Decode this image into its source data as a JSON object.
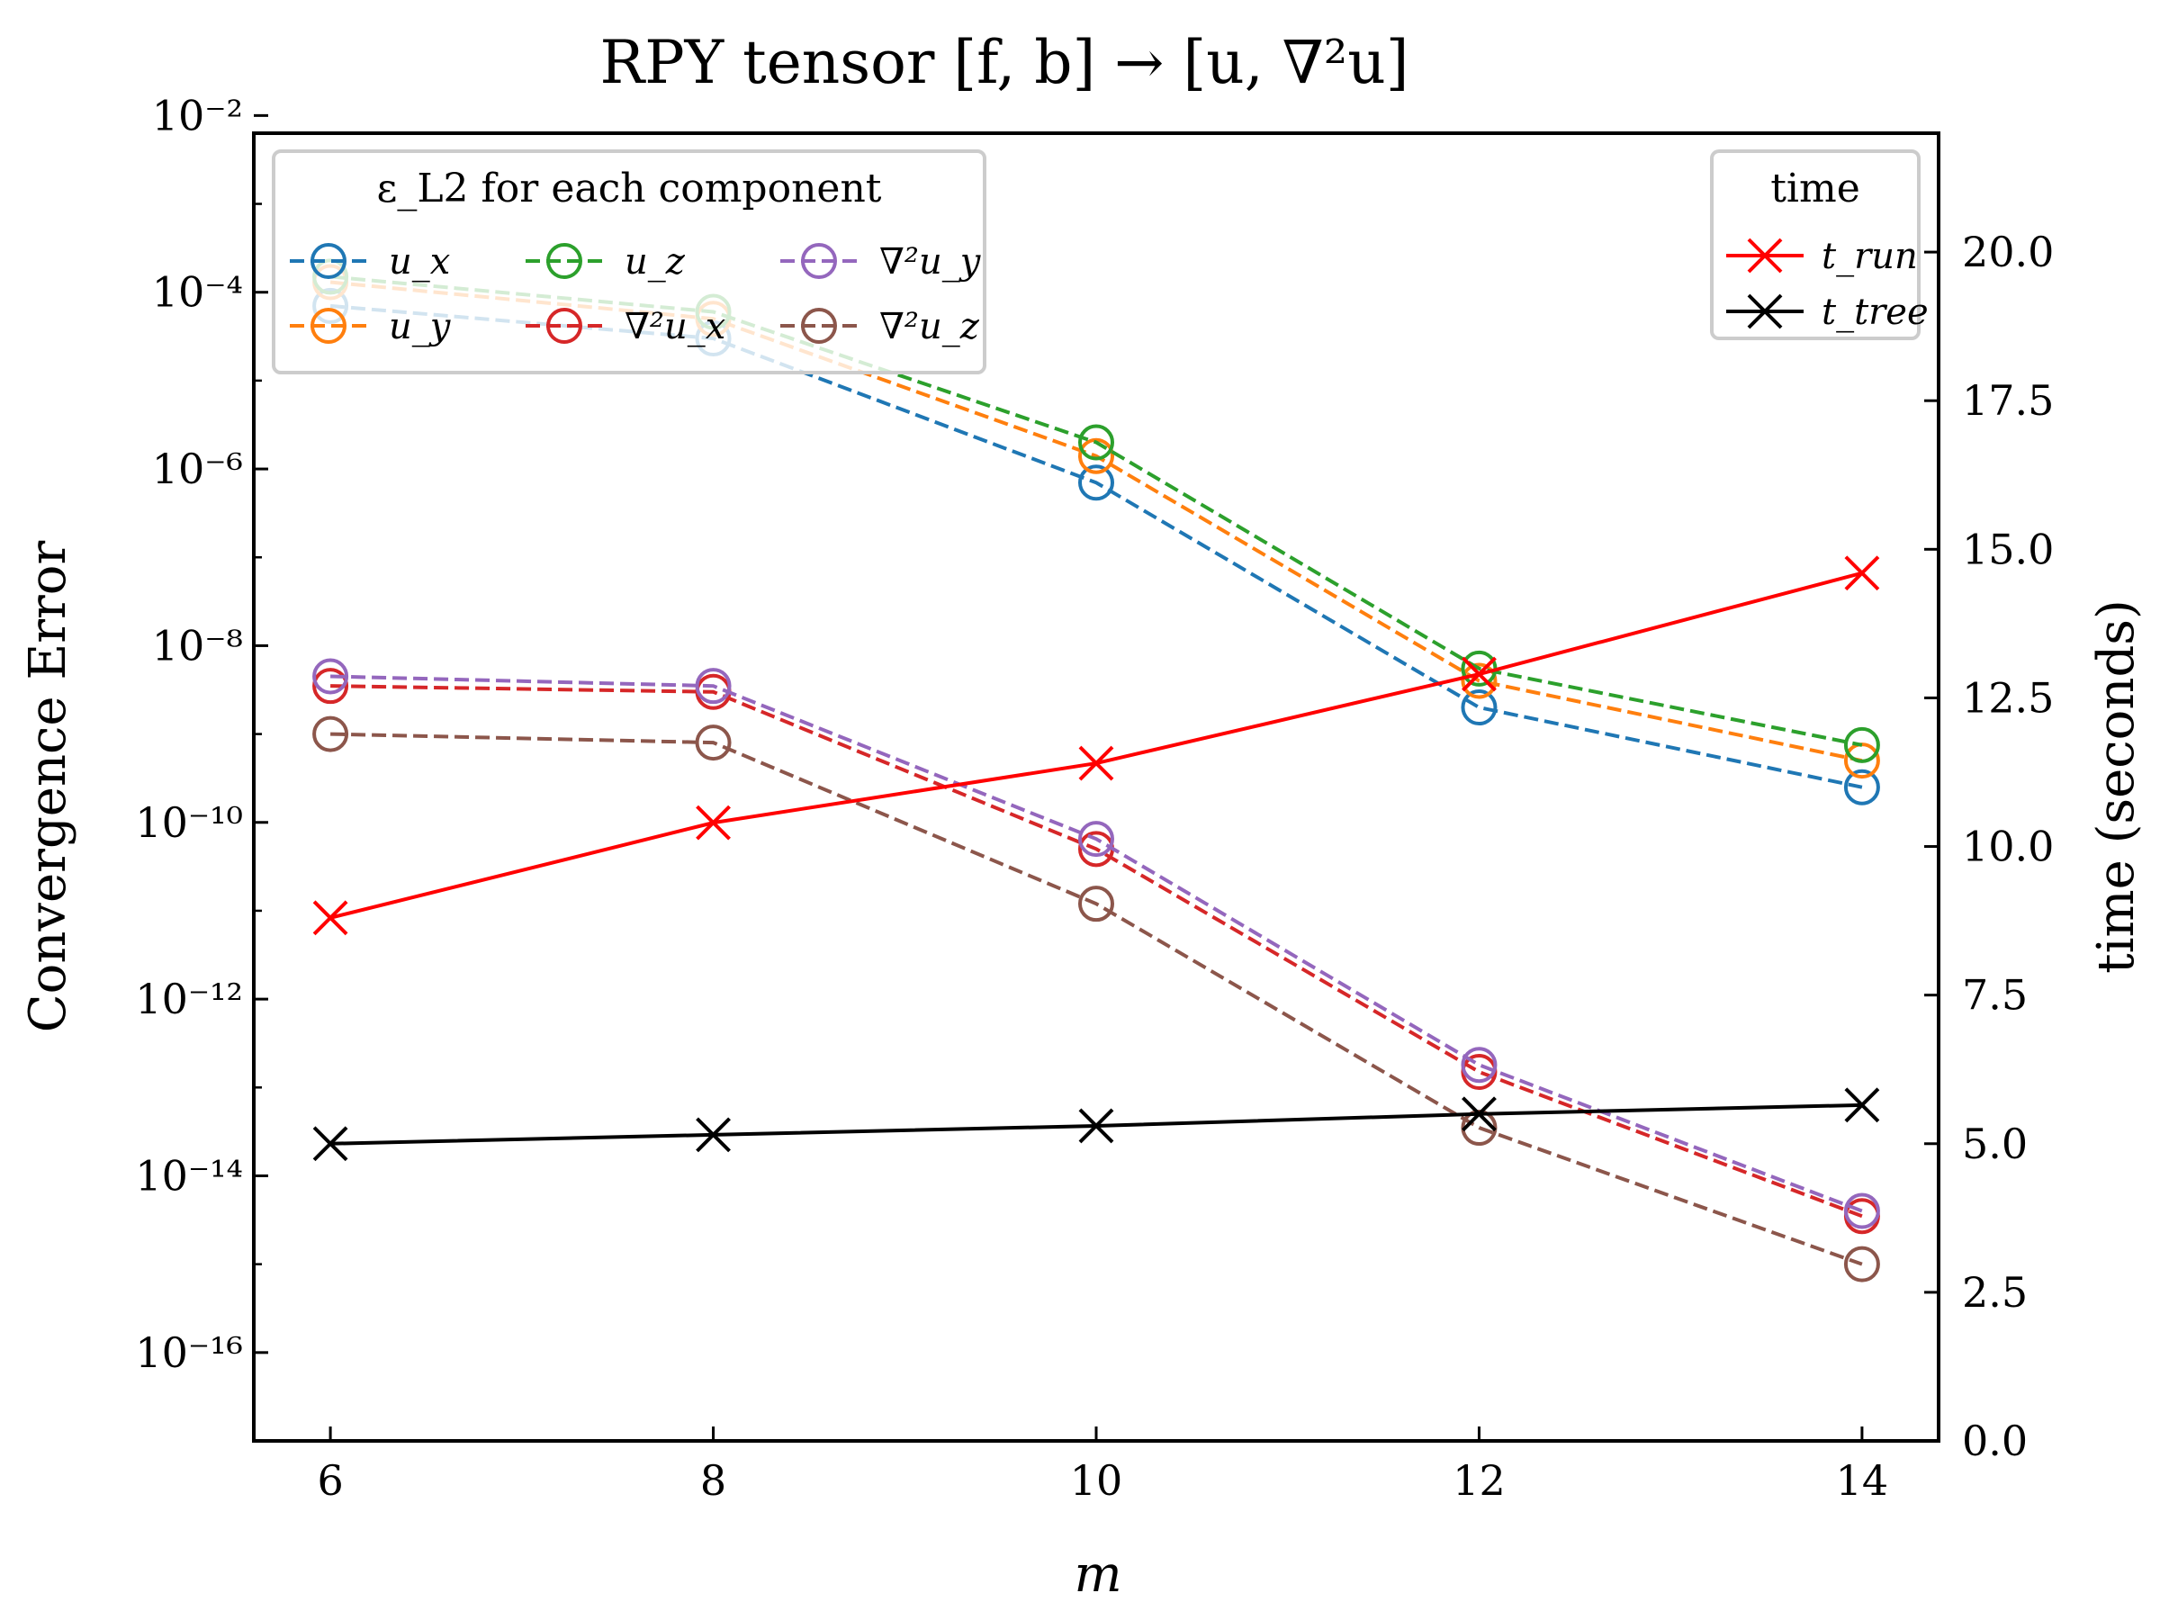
{
  "chart_data": {
    "type": "line",
    "title": "RPY tensor [f, b] → [u, ∇²u]",
    "xlabel": "m",
    "ylabel_left": "Convergence Error",
    "ylabel_right": "time (seconds)",
    "x": [
      6,
      8,
      10,
      12,
      14
    ],
    "xticks": [
      "6",
      "8",
      "10",
      "12",
      "14"
    ],
    "xlim": [
      5.6,
      14.4
    ],
    "left_axis": {
      "scale": "log",
      "ylim_exp": [
        -17,
        -2.2
      ],
      "tick_exponents": [
        -16,
        -14,
        -12,
        -10,
        -8,
        -6,
        -4,
        -2
      ],
      "tick_labels": [
        "10⁻¹⁶",
        "10⁻¹⁴",
        "10⁻¹²",
        "10⁻¹⁰",
        "10⁻⁸",
        "10⁻⁶",
        "10⁻⁴",
        "10⁻²"
      ]
    },
    "right_axis": {
      "scale": "linear",
      "ylim": [
        0,
        22
      ],
      "ticks": [
        0,
        2.5,
        5,
        7.5,
        10,
        12.5,
        15,
        17.5,
        20
      ],
      "tick_labels": [
        "0.0",
        "2.5",
        "5.0",
        "7.5",
        "10.0",
        "12.5",
        "15.0",
        "17.5",
        "20.0"
      ]
    },
    "error_legend_title": "ε_L2 for each component",
    "time_legend_title": "time",
    "error_series": [
      {
        "name": "u_x",
        "color": "#1f77b4",
        "values": [
          7e-05,
          3e-05,
          7e-07,
          2e-09,
          2.5e-10
        ]
      },
      {
        "name": "u_y",
        "color": "#ff7f0e",
        "values": [
          0.00013,
          5e-05,
          1.4e-06,
          4e-09,
          5e-10
        ]
      },
      {
        "name": "u_z",
        "color": "#2ca02c",
        "values": [
          0.00015,
          6e-05,
          2e-06,
          5.5e-09,
          7.5e-10
        ]
      },
      {
        "name": "∇²u_x",
        "color": "#d62728",
        "values": [
          3.5e-09,
          3e-09,
          5e-11,
          1.5e-13,
          3.5e-15
        ]
      },
      {
        "name": "∇²u_y",
        "color": "#9467bd",
        "values": [
          4.5e-09,
          3.5e-09,
          6.5e-11,
          1.8e-13,
          4e-15
        ]
      },
      {
        "name": "∇²u_z",
        "color": "#8c564b",
        "values": [
          1e-09,
          8e-10,
          1.2e-11,
          3.5e-14,
          1e-15
        ]
      }
    ],
    "time_series": [
      {
        "name": "t_run",
        "color": "#ff0000",
        "values": [
          8.8,
          10.4,
          11.4,
          12.9,
          14.6
        ]
      },
      {
        "name": "t_tree",
        "color": "#000000",
        "values": [
          5.0,
          5.15,
          5.3,
          5.5,
          5.65
        ]
      }
    ]
  }
}
